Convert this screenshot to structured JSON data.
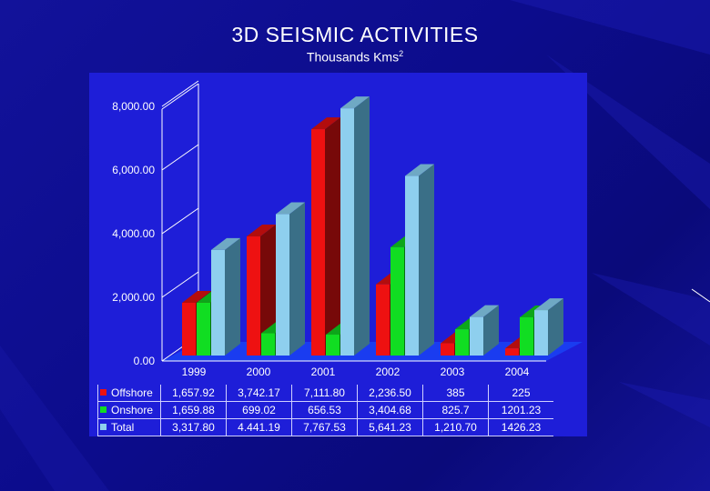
{
  "title": "3D SEISMIC ACTIVITIES",
  "subtitle_main": "Thousands Kms",
  "subtitle_sup": "2",
  "colors": {
    "offshore": "#ee1111",
    "onshore": "#11dd22",
    "total": "#8ecfee",
    "floor": "#1a3cf0",
    "panel": "#1e1ed8"
  },
  "chart_data": {
    "type": "bar",
    "title": "3D SEISMIC ACTIVITIES",
    "subtitle": "Thousands Kms2",
    "categories": [
      "1999",
      "2000",
      "2001",
      "2002",
      "2003",
      "2004"
    ],
    "y_ticks": [
      "8,000.00",
      "6,000.00",
      "4,000.00",
      "2,000.00",
      "0.00"
    ],
    "ylim": [
      0,
      8000
    ],
    "grid": false,
    "series": [
      {
        "name": "Offshore",
        "values": [
          1657.92,
          3742.17,
          7111.8,
          2236.5,
          385,
          225
        ],
        "labels": [
          "1,657.92",
          "3,742.17",
          "7,111.80",
          "2,236.50",
          "385",
          "225"
        ]
      },
      {
        "name": "Onshore",
        "values": [
          1659.88,
          699.02,
          656.53,
          3404.68,
          825.7,
          1201.23
        ],
        "labels": [
          "1,659.88",
          "699.02",
          "656.53",
          "3,404.68",
          "825.7",
          "1201.23"
        ]
      },
      {
        "name": "Total",
        "values": [
          3317.8,
          4441.19,
          7767.53,
          5641.23,
          1210.7,
          1426.23
        ],
        "labels": [
          "3,317.80",
          "4.441.19",
          "7,767.53",
          "5,641.23",
          "1,210.70",
          "1426.23"
        ]
      }
    ]
  }
}
